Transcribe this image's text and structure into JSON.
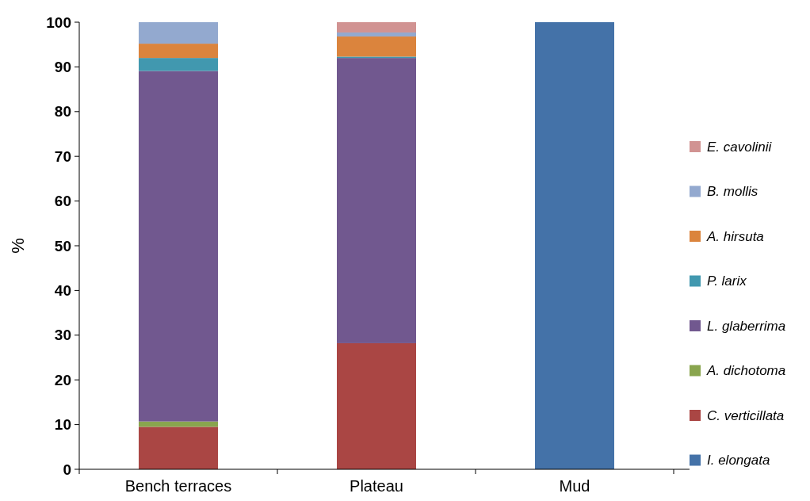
{
  "chart_data": {
    "type": "bar",
    "stacked": true,
    "ylabel": "%",
    "categories": [
      "Bench terraces",
      "Plateau",
      "Mud"
    ],
    "ylim": [
      0,
      100
    ],
    "yticks": [
      0,
      10,
      20,
      30,
      40,
      50,
      60,
      70,
      80,
      90,
      100
    ],
    "grid": false,
    "legend": "right",
    "series": [
      {
        "name": "I. elongata",
        "color": "#4472a8",
        "values": [
          0,
          0,
          100
        ]
      },
      {
        "name": "C. verticillata",
        "color": "#aa4644",
        "values": [
          9.5,
          28.2,
          0
        ]
      },
      {
        "name": "A. dichotoma",
        "color": "#89a54e",
        "values": [
          1.2,
          0,
          0
        ]
      },
      {
        "name": "L. glaberrima",
        "color": "#71588f",
        "values": [
          78.4,
          63.8,
          0
        ]
      },
      {
        "name": "P. larix",
        "color": "#4198af",
        "values": [
          2.9,
          0.3,
          0
        ]
      },
      {
        "name": "A. hirsuta",
        "color": "#db843d",
        "values": [
          3.2,
          4.5,
          0
        ]
      },
      {
        "name": "B. mollis",
        "color": "#93a9cf",
        "values": [
          4.8,
          0.9,
          0
        ]
      },
      {
        "name": "E. cavolinii",
        "color": "#d19392",
        "values": [
          0,
          2.3,
          0
        ]
      }
    ]
  }
}
